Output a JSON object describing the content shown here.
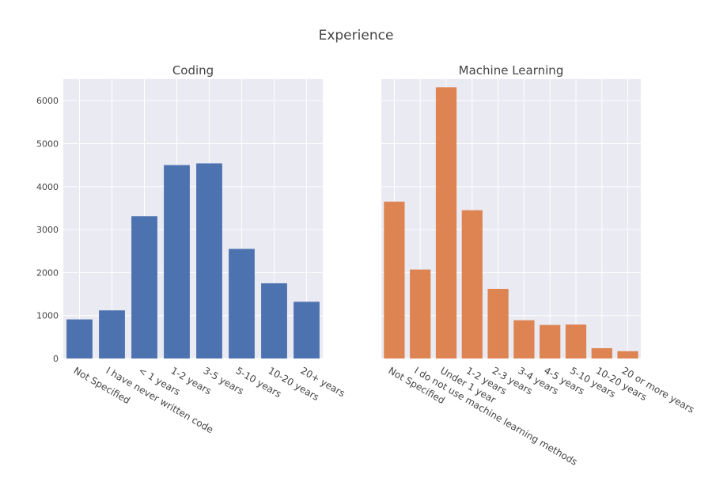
{
  "title": "Experience",
  "colors": {
    "coding": "#4c72b0",
    "ml": "#dd8452",
    "plot_bg": "#eaeaf2",
    "grid": "#ffffff"
  },
  "chart_data": [
    {
      "type": "bar",
      "title": "Coding",
      "categories": [
        "Not Specified",
        "I have never written code",
        "< 1 years",
        "1-2 years",
        "3-5 years",
        "5-10 years",
        "10-20 years",
        "20+ years"
      ],
      "values": [
        910,
        1120,
        3310,
        4500,
        4540,
        2550,
        1750,
        1320
      ],
      "ylim": [
        0,
        6500
      ],
      "yticks": [
        0,
        1000,
        2000,
        3000,
        4000,
        5000,
        6000
      ],
      "grid": true
    },
    {
      "type": "bar",
      "title": "Machine Learning",
      "categories": [
        "Not Specified",
        "I do not use machine learning methods",
        "Under 1 year",
        "1-2 years",
        "2-3 years",
        "3-4 years",
        "4-5 years",
        "5-10 years",
        "10-20 years",
        "20 or more years"
      ],
      "values": [
        3650,
        2070,
        6310,
        3450,
        1620,
        890,
        780,
        790,
        240,
        170
      ],
      "ylim": [
        0,
        6500
      ],
      "yticks": [
        0,
        1000,
        2000,
        3000,
        4000,
        5000,
        6000
      ],
      "grid": true,
      "shared_y": true
    }
  ]
}
